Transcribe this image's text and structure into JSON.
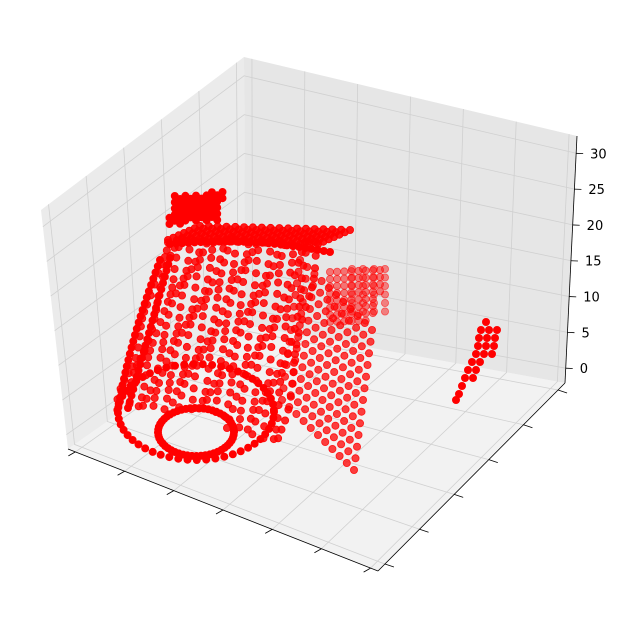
{
  "chart_data": {
    "type": "scatter",
    "projection": "3d",
    "marker_color": "#ff0000",
    "x": {
      "tick_count": 7,
      "tick_labels_shown": false
    },
    "y": {
      "tick_count": 6,
      "tick_labels_shown": false
    },
    "z": {
      "ylim": [
        0,
        30
      ],
      "ticks": [
        "0",
        "5",
        "10",
        "15",
        "20",
        "25",
        "30"
      ]
    },
    "grid": true,
    "series": [
      {
        "cluster": "main-body",
        "shape": "hollow shell with an oval opening at the front bottom",
        "z_range": [
          0,
          20
        ]
      },
      {
        "cluster": "top-plate",
        "shape": "flat diamond-shaped layer",
        "z_range": [
          24,
          25
        ]
      },
      {
        "cluster": "rear-extension",
        "shape": "wedge extending toward the back",
        "z_range": [
          5,
          17
        ]
      },
      {
        "cluster": "side-fin",
        "shape": "thin tapered column on the right",
        "z_range": [
          0,
          8
        ]
      }
    ]
  }
}
